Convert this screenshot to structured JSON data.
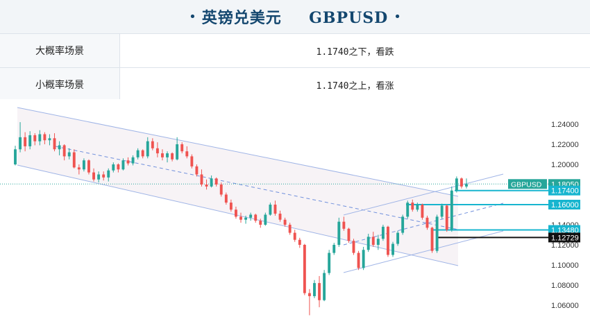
{
  "header": {
    "title_cn": "英镑兑美元",
    "title_symbol": "GBPUSD",
    "bullet": "•"
  },
  "scenarios": [
    {
      "label": "大概率场景",
      "value": "1.1740之下，看跌"
    },
    {
      "label": "小概率场景",
      "value": "1.1740之上，看涨"
    }
  ],
  "chart_data": {
    "type": "candlestick",
    "symbol": "GBPUSD",
    "y_ticks": [
      "1.24000",
      "1.22000",
      "1.20000",
      "1.18000",
      "1.16000",
      "1.14000",
      "1.12000",
      "1.10000",
      "1.08000",
      "1.06000"
    ],
    "ylim": [
      1.05,
      1.25
    ],
    "current_price": {
      "label": "GBPUSD",
      "value": 1.1805,
      "text": "1.18050",
      "color": "#26a69a"
    },
    "levels": [
      {
        "value": 1.174,
        "text": "1.17400",
        "color": "#17b5cf"
      },
      {
        "value": 1.16,
        "text": "1.16000",
        "color": "#17b5cf"
      },
      {
        "value": 1.1348,
        "text": "1.13480",
        "color": "#17b5cf"
      },
      {
        "value": 1.12729,
        "text": "1.12729",
        "color": "#111111"
      }
    ],
    "up_color": "#26a69a",
    "down_color": "#ef5350",
    "candles": [
      [
        1.2,
        1.2185,
        1.199,
        1.215
      ],
      [
        1.215,
        1.242,
        1.212,
        1.227
      ],
      [
        1.227,
        1.232,
        1.213,
        1.218
      ],
      [
        1.218,
        1.233,
        1.215,
        1.229
      ],
      [
        1.229,
        1.231,
        1.219,
        1.223
      ],
      [
        1.223,
        1.234,
        1.219,
        1.23
      ],
      [
        1.23,
        1.232,
        1.22,
        1.224
      ],
      [
        1.224,
        1.23,
        1.219,
        1.226
      ],
      [
        1.226,
        1.231,
        1.213,
        1.215
      ],
      [
        1.215,
        1.223,
        1.209,
        1.219
      ],
      [
        1.219,
        1.22,
        1.204,
        1.208
      ],
      [
        1.208,
        1.216,
        1.205,
        1.212
      ],
      [
        1.212,
        1.215,
        1.196,
        1.197
      ],
      [
        1.197,
        1.2,
        1.19,
        1.195
      ],
      [
        1.195,
        1.206,
        1.193,
        1.204
      ],
      [
        1.204,
        1.205,
        1.19,
        1.192
      ],
      [
        1.192,
        1.196,
        1.183,
        1.185
      ],
      [
        1.185,
        1.193,
        1.182,
        1.19
      ],
      [
        1.19,
        1.193,
        1.184,
        1.187
      ],
      [
        1.187,
        1.196,
        1.183,
        1.194
      ],
      [
        1.194,
        1.202,
        1.192,
        1.2
      ],
      [
        1.2,
        1.201,
        1.192,
        1.195
      ],
      [
        1.195,
        1.206,
        1.194,
        1.204
      ],
      [
        1.204,
        1.207,
        1.199,
        1.201
      ],
      [
        1.201,
        1.209,
        1.199,
        1.207
      ],
      [
        1.207,
        1.216,
        1.205,
        1.214
      ],
      [
        1.214,
        1.215,
        1.206,
        1.208
      ],
      [
        1.208,
        1.227,
        1.206,
        1.223
      ],
      [
        1.223,
        1.226,
        1.214,
        1.216
      ],
      [
        1.216,
        1.222,
        1.207,
        1.211
      ],
      [
        1.211,
        1.215,
        1.204,
        1.207
      ],
      [
        1.207,
        1.213,
        1.202,
        1.211
      ],
      [
        1.211,
        1.212,
        1.203,
        1.205
      ],
      [
        1.205,
        1.227,
        1.204,
        1.22
      ],
      [
        1.22,
        1.222,
        1.211,
        1.213
      ],
      [
        1.213,
        1.218,
        1.206,
        1.208
      ],
      [
        1.208,
        1.21,
        1.196,
        1.198
      ],
      [
        1.198,
        1.2,
        1.188,
        1.19
      ],
      [
        1.19,
        1.195,
        1.178,
        1.18
      ],
      [
        1.18,
        1.185,
        1.175,
        1.178
      ],
      [
        1.178,
        1.189,
        1.177,
        1.186
      ],
      [
        1.186,
        1.187,
        1.178,
        1.18
      ],
      [
        1.18,
        1.182,
        1.168,
        1.17
      ],
      [
        1.17,
        1.172,
        1.16,
        1.162
      ],
      [
        1.162,
        1.165,
        1.153,
        1.155
      ],
      [
        1.155,
        1.158,
        1.146,
        1.148
      ],
      [
        1.148,
        1.152,
        1.142,
        1.145
      ],
      [
        1.145,
        1.149,
        1.141,
        1.147
      ],
      [
        1.147,
        1.152,
        1.144,
        1.15
      ],
      [
        1.15,
        1.151,
        1.142,
        1.144
      ],
      [
        1.144,
        1.146,
        1.137,
        1.14
      ],
      [
        1.14,
        1.152,
        1.139,
        1.15
      ],
      [
        1.15,
        1.162,
        1.149,
        1.16
      ],
      [
        1.16,
        1.164,
        1.149,
        1.151
      ],
      [
        1.151,
        1.154,
        1.143,
        1.145
      ],
      [
        1.145,
        1.147,
        1.138,
        1.14
      ],
      [
        1.14,
        1.142,
        1.13,
        1.132
      ],
      [
        1.132,
        1.135,
        1.123,
        1.125
      ],
      [
        1.125,
        1.127,
        1.117,
        1.12
      ],
      [
        1.12,
        1.121,
        1.07,
        1.072
      ],
      [
        1.072,
        1.076,
        1.05,
        1.069
      ],
      [
        1.069,
        1.085,
        1.067,
        1.082
      ],
      [
        1.082,
        1.089,
        1.058,
        1.065
      ],
      [
        1.065,
        1.095,
        1.064,
        1.092
      ],
      [
        1.092,
        1.115,
        1.09,
        1.112
      ],
      [
        1.112,
        1.122,
        1.11,
        1.12
      ],
      [
        1.12,
        1.147,
        1.118,
        1.143
      ],
      [
        1.143,
        1.148,
        1.134,
        1.136
      ],
      [
        1.136,
        1.137,
        1.122,
        1.124
      ],
      [
        1.124,
        1.126,
        1.11,
        1.112
      ],
      [
        1.112,
        1.114,
        1.095,
        1.097
      ],
      [
        1.097,
        1.118,
        1.095,
        1.115
      ],
      [
        1.115,
        1.131,
        1.113,
        1.128
      ],
      [
        1.128,
        1.133,
        1.118,
        1.12
      ],
      [
        1.12,
        1.13,
        1.115,
        1.126
      ],
      [
        1.126,
        1.14,
        1.124,
        1.138
      ],
      [
        1.138,
        1.139,
        1.108,
        1.11
      ],
      [
        1.11,
        1.123,
        1.108,
        1.121
      ],
      [
        1.121,
        1.134,
        1.119,
        1.132
      ],
      [
        1.132,
        1.15,
        1.13,
        1.148
      ],
      [
        1.148,
        1.164,
        1.146,
        1.162
      ],
      [
        1.162,
        1.165,
        1.153,
        1.155
      ],
      [
        1.155,
        1.162,
        1.153,
        1.16
      ],
      [
        1.16,
        1.161,
        1.145,
        1.147
      ],
      [
        1.147,
        1.149,
        1.135,
        1.137
      ],
      [
        1.137,
        1.138,
        1.112,
        1.114
      ],
      [
        1.114,
        1.15,
        1.112,
        1.148
      ],
      [
        1.148,
        1.161,
        1.146,
        1.159
      ],
      [
        1.159,
        1.16,
        1.133,
        1.135
      ],
      [
        1.135,
        1.178,
        1.133,
        1.174
      ],
      [
        1.174,
        1.188,
        1.172,
        1.186
      ],
      [
        1.186,
        1.187,
        1.176,
        1.178
      ],
      [
        1.178,
        1.186,
        1.176,
        1.1805
      ]
    ]
  }
}
